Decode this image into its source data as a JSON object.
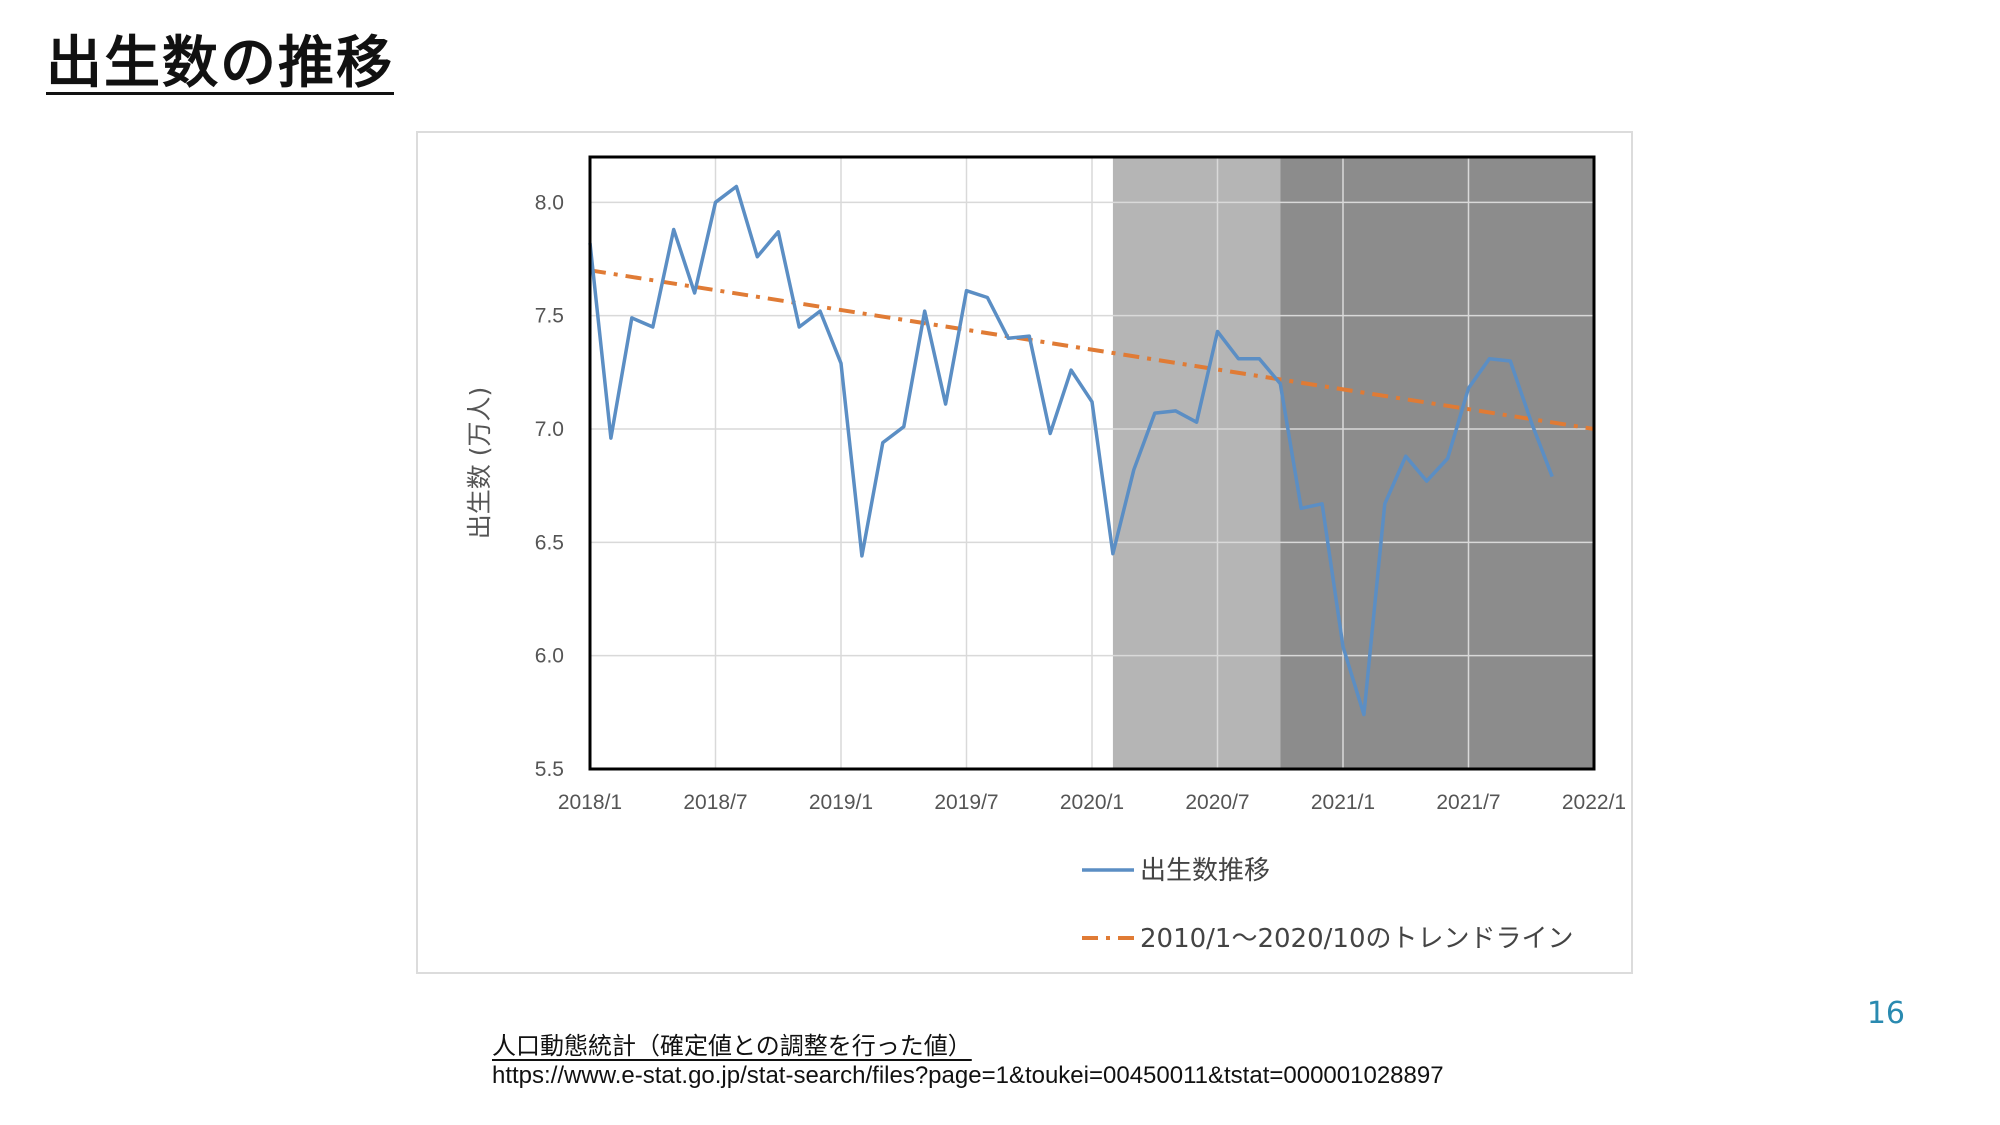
{
  "slide": {
    "title": "出生数の推移",
    "page_number": "16",
    "source_title": "人口動態統計（確定値との調整を行った値）",
    "source_url": "https://www.e-stat.go.jp/stat-search/files?page=1&toukei=00450011&tstat=000001028897"
  },
  "chart_data": {
    "type": "line",
    "title": "",
    "xlabel": "",
    "ylabel": "出生数 (万人)",
    "ylim": [
      5.5,
      8.2
    ],
    "y_ticks": [
      5.5,
      6.0,
      6.5,
      7.0,
      7.5,
      8.0
    ],
    "y_tick_labels": [
      "5.5",
      "6.0",
      "6.5",
      "7.0",
      "7.5",
      "8.0"
    ],
    "x_ticks": [
      "2018/1",
      "2018/7",
      "2019/1",
      "2019/7",
      "2020/1",
      "2020/7",
      "2021/1",
      "2021/7",
      "2022/1"
    ],
    "grid": true,
    "legend_position": "bottom",
    "x": [
      "2018/1",
      "2018/2",
      "2018/3",
      "2018/4",
      "2018/5",
      "2018/6",
      "2018/7",
      "2018/8",
      "2018/9",
      "2018/10",
      "2018/11",
      "2018/12",
      "2019/1",
      "2019/2",
      "2019/3",
      "2019/4",
      "2019/5",
      "2019/6",
      "2019/7",
      "2019/8",
      "2019/9",
      "2019/10",
      "2019/11",
      "2019/12",
      "2020/1",
      "2020/2",
      "2020/3",
      "2020/4",
      "2020/5",
      "2020/6",
      "2020/7",
      "2020/8",
      "2020/9",
      "2020/10",
      "2020/11",
      "2020/12",
      "2021/1",
      "2021/2",
      "2021/3",
      "2021/4",
      "2021/5",
      "2021/6",
      "2021/7",
      "2021/8",
      "2021/9",
      "2021/10",
      "2021/11"
    ],
    "series": [
      {
        "name": "出生数推移",
        "color": "#5b8ec4",
        "style": "solid",
        "values": [
          7.82,
          6.96,
          7.49,
          7.45,
          7.88,
          7.6,
          8.0,
          8.07,
          7.76,
          7.87,
          7.45,
          7.52,
          7.29,
          6.44,
          6.94,
          7.01,
          7.52,
          7.11,
          7.61,
          7.58,
          7.4,
          7.41,
          6.98,
          7.26,
          7.12,
          6.45,
          6.82,
          7.07,
          7.08,
          7.03,
          7.43,
          7.31,
          7.31,
          7.2,
          6.65,
          6.67,
          6.04,
          5.74,
          6.67,
          6.88,
          6.77,
          6.87,
          7.18,
          7.31,
          7.3,
          7.03,
          6.79
        ]
      },
      {
        "name": "2010/1〜2020/10のトレンドライン",
        "color": "#e07b35",
        "style": "dash-dot",
        "start": {
          "x": "2018/1",
          "y": 7.7
        },
        "end": {
          "x": "2022/1",
          "y": 7.0
        }
      }
    ],
    "shaded_regions": [
      {
        "from": "2020/2",
        "to": "2020/10",
        "color": "#b5b5b5"
      },
      {
        "from": "2020/10",
        "to": "2022/1",
        "color": "#8c8c8c"
      }
    ]
  }
}
